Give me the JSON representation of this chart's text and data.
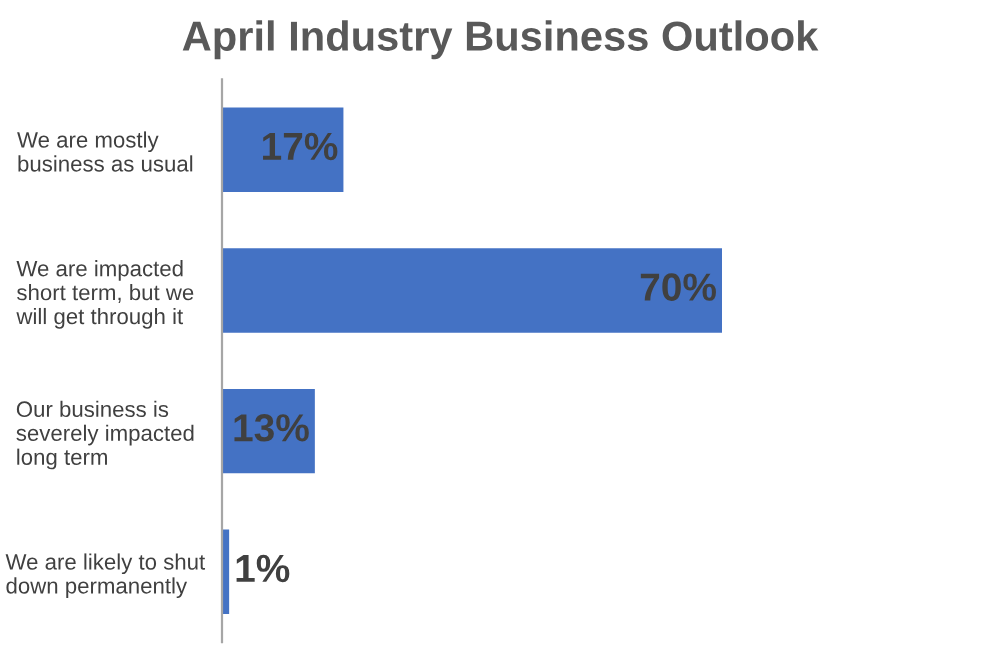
{
  "chart_data": {
    "type": "bar",
    "orientation": "horizontal",
    "title": "April Industry Business Outlook",
    "categories": [
      "We are mostly\nbusiness as usual",
      "We are impacted\nshort term, but we\nwill get through it",
      "Our business is\nseverely impacted\nlong term",
      "We are likely to shut\ndown permanently"
    ],
    "values": [
      17,
      70,
      13,
      1
    ],
    "value_labels": [
      "17%",
      "70%",
      "13%",
      "1%"
    ],
    "color": "#4472c4"
  }
}
